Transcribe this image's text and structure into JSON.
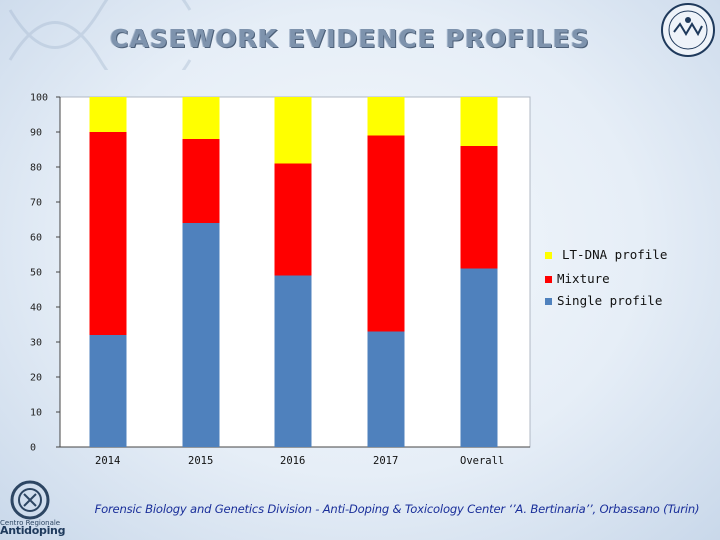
{
  "header": {
    "title": "CASEWORK EVIDENCE PROFILES"
  },
  "footer": {
    "text": "Forensic Biology  and Genetics Division - Anti-Doping & Toxicology Center ‘’A. Bertinaria’’, Orbassano (Turin)"
  },
  "logo": {
    "line1": "Centro Regionale",
    "line2": "Antidoping"
  },
  "colors": {
    "single": "#4f81bd",
    "mixture": "#ff0000",
    "ltdna": "#ffff00"
  },
  "chart_data": {
    "type": "bar",
    "stacked": true,
    "categories": [
      "2014",
      "2015",
      "2016",
      "2017",
      "Overall"
    ],
    "series": [
      {
        "name": "Single profile",
        "values": [
          32,
          64,
          49,
          33,
          51
        ]
      },
      {
        "name": "Mixture",
        "values": [
          58,
          24,
          32,
          56,
          35
        ]
      },
      {
        "name": "LT-DNA profile",
        "values": [
          10,
          12,
          19,
          11,
          14
        ]
      }
    ],
    "title": "CASEWORK EVIDENCE PROFILES",
    "xlabel": "",
    "ylabel": "",
    "ylim": [
      0,
      100
    ],
    "yticks": [
      0,
      10,
      20,
      30,
      40,
      50,
      60,
      70,
      80,
      90,
      100
    ],
    "grid": false,
    "legend": "right"
  }
}
